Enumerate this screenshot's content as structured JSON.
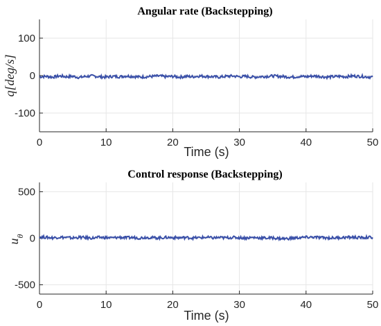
{
  "chart_data": [
    {
      "type": "line",
      "title": "Angular rate (Backstepping)",
      "xlabel": "Time (s)",
      "ylabel": "q[deg/s]",
      "xlim": [
        0,
        50
      ],
      "ylim": [
        -150,
        150
      ],
      "xticks": [
        "0",
        "10",
        "20",
        "30",
        "40",
        "50"
      ],
      "yticks": [
        "100",
        "0",
        "-100"
      ],
      "grid": true,
      "color": "#3a50a8",
      "series": [
        {
          "x_range": [
            0,
            50
          ],
          "values": [
            -3,
            -2,
            -4,
            -1,
            -3,
            -2,
            -5,
            -2,
            -1,
            -3,
            -4,
            -2,
            -3,
            -1,
            -2,
            -4,
            -3,
            -2,
            -1,
            -3,
            -2,
            -4,
            -2,
            -3,
            -1,
            -2,
            -3,
            -4,
            -2,
            -1,
            -3,
            -2,
            -4,
            -3,
            -2,
            -1,
            -2,
            -3,
            -4,
            -2,
            -3,
            -1,
            -2,
            -4,
            -3,
            -2,
            -3,
            -1,
            -2,
            -3,
            -4
          ]
        }
      ]
    },
    {
      "type": "line",
      "title": "Control response (Backstepping)",
      "xlabel": "Time (s)",
      "ylabel": "u_θ",
      "xlim": [
        0,
        50
      ],
      "ylim": [
        -600,
        600
      ],
      "xticks": [
        "0",
        "10",
        "20",
        "30",
        "40",
        "50"
      ],
      "yticks": [
        "500",
        "0",
        "-500"
      ],
      "grid": true,
      "color": "#3a50a8",
      "series": [
        {
          "x_range": [
            0,
            50
          ],
          "values": [
            15,
            10,
            5,
            12,
            8,
            3,
            10,
            6,
            2,
            9,
            7,
            4,
            11,
            5,
            8,
            3,
            10,
            6,
            4,
            9,
            7,
            5,
            8,
            3,
            6,
            10,
            4,
            7,
            5,
            9,
            6,
            3,
            8,
            5,
            2,
            4,
            -2,
            -5,
            1,
            6,
            10,
            12,
            8,
            5,
            3,
            7,
            9,
            11,
            6,
            8,
            10
          ]
        }
      ]
    }
  ]
}
